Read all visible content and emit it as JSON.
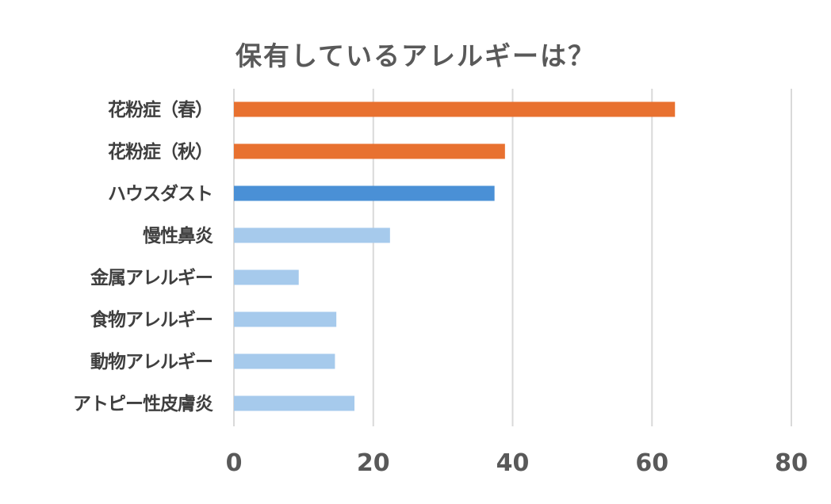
{
  "chart_data": {
    "type": "bar",
    "orientation": "horizontal",
    "title": "保有しているアレルギーは？",
    "categories": [
      "花粉症（春）",
      "花粉症（秋）",
      "ハウスダスト",
      "慢性鼻炎",
      "金属アレルギー",
      "食物アレルギー",
      "動物アレルギー",
      "アトピー性皮膚炎"
    ],
    "values": [
      63.3,
      38.9,
      37.4,
      22.4,
      9.3,
      14.7,
      14.5,
      17.3
    ],
    "colors": [
      "#E87130",
      "#E87130",
      "#4A90D6",
      "#A6CAEC",
      "#A6CAEC",
      "#A6CAEC",
      "#A6CAEC",
      "#A6CAEC"
    ],
    "xlim": [
      0,
      80
    ],
    "xticks": [
      "0",
      "20",
      "40",
      "60",
      "80"
    ],
    "grid": "vertical",
    "gridColor": "#D9D9D9",
    "legend": "none"
  }
}
